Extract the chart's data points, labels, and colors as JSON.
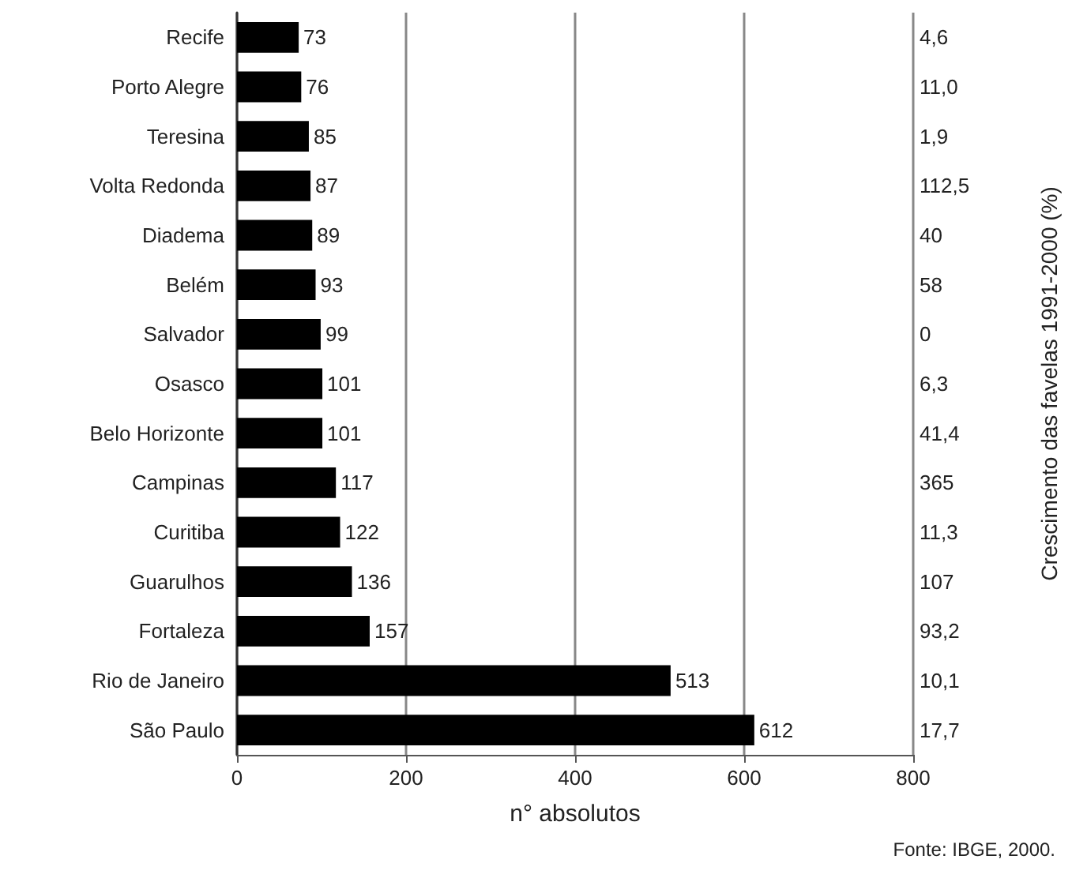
{
  "chart_data": {
    "type": "bar",
    "orientation": "horizontal",
    "categories": [
      "Recife",
      "Porto Alegre",
      "Teresina",
      "Volta Redonda",
      "Diadema",
      "Belém",
      "Salvador",
      "Osasco",
      "Belo Horizonte",
      "Campinas",
      "Curitiba",
      "Guarulhos",
      "Fortaleza",
      "Rio de Janeiro",
      "São Paulo"
    ],
    "values": [
      73,
      76,
      85,
      87,
      89,
      93,
      99,
      101,
      101,
      117,
      122,
      136,
      157,
      513,
      612
    ],
    "color": "#000000",
    "xlim": [
      0,
      800
    ],
    "xticks": [
      0,
      200,
      400,
      600,
      800
    ],
    "grid": "x",
    "data_labels": true,
    "xlabel": "n° absolutos",
    "y2label": "Crescimento das favelas 1991-2000 (%)",
    "annotations": [
      "4,6",
      "11,0",
      "1,9",
      "112,5",
      "40",
      "58",
      "0",
      "6,3",
      "41,4",
      "365",
      "11,3",
      "107",
      "93,2",
      "10,1",
      "17,7",
      "Fonte: IBGE, 2000."
    ]
  }
}
